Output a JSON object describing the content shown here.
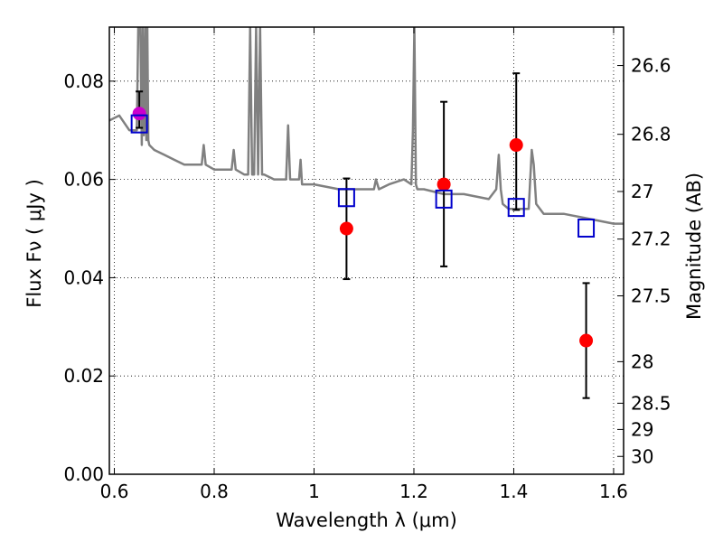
{
  "chart_data": {
    "type": "scatter",
    "title": "",
    "xlabel": "Wavelength  λ (μm)",
    "ylabel": "Flux  Fν ( μJy )",
    "ylabel_right": "Magnitude (AB)",
    "xlim": [
      0.59,
      1.62
    ],
    "ylim": [
      0.0,
      0.091
    ],
    "grid": true,
    "x_ticks": [
      0.6,
      0.8,
      1.0,
      1.2,
      1.4,
      1.6
    ],
    "x_tick_labels": [
      "0.6",
      "0.8",
      "1",
      "1.2",
      "1.4",
      "1.6"
    ],
    "y_ticks": [
      0.0,
      0.02,
      0.04,
      0.06,
      0.08
    ],
    "y_tick_labels": [
      "0.00",
      "0.02",
      "0.04",
      "0.06",
      "0.08"
    ],
    "mag_ticks": [
      26.6,
      26.8,
      27,
      27.2,
      27.5,
      28,
      28.5,
      29,
      30
    ],
    "mag_tick_labels": [
      "26.6",
      "26.8",
      "27",
      "27.2",
      "27.5",
      "28",
      "28.5",
      "29",
      "30"
    ],
    "series": [
      {
        "kind": "spectrum-line",
        "color": "#808080",
        "x": [
          0.59,
          0.61,
          0.63,
          0.645,
          0.648,
          0.652,
          0.655,
          0.657,
          0.659,
          0.662,
          0.664,
          0.666,
          0.668,
          0.67,
          0.68,
          0.7,
          0.72,
          0.74,
          0.76,
          0.775,
          0.779,
          0.783,
          0.8,
          0.82,
          0.835,
          0.839,
          0.843,
          0.86,
          0.868,
          0.872,
          0.876,
          0.88,
          0.884,
          0.888,
          0.892,
          0.896,
          0.9,
          0.92,
          0.944,
          0.948,
          0.952,
          0.97,
          0.973,
          0.976,
          1.0,
          1.05,
          1.1,
          1.12,
          1.124,
          1.13,
          1.15,
          1.18,
          1.195,
          1.198,
          1.201,
          1.204,
          1.207,
          1.22,
          1.26,
          1.3,
          1.35,
          1.365,
          1.37,
          1.374,
          1.378,
          1.39,
          1.43,
          1.436,
          1.44,
          1.445,
          1.46,
          1.5,
          1.55,
          1.6,
          1.62
        ],
        "y": [
          0.072,
          0.073,
          0.07,
          0.07,
          0.091,
          0.091,
          0.067,
          0.091,
          0.069,
          0.091,
          0.068,
          0.091,
          0.068,
          0.067,
          0.066,
          0.065,
          0.064,
          0.063,
          0.063,
          0.063,
          0.067,
          0.063,
          0.062,
          0.062,
          0.062,
          0.066,
          0.062,
          0.061,
          0.061,
          0.091,
          0.061,
          0.061,
          0.091,
          0.061,
          0.091,
          0.061,
          0.061,
          0.06,
          0.06,
          0.071,
          0.06,
          0.06,
          0.064,
          0.059,
          0.059,
          0.058,
          0.058,
          0.058,
          0.06,
          0.058,
          0.059,
          0.06,
          0.059,
          0.07,
          0.091,
          0.059,
          0.058,
          0.058,
          0.057,
          0.057,
          0.056,
          0.058,
          0.065,
          0.058,
          0.055,
          0.054,
          0.054,
          0.066,
          0.063,
          0.055,
          0.053,
          0.053,
          0.052,
          0.051,
          0.051
        ]
      },
      {
        "kind": "model-boxes",
        "marker": "open-square",
        "color": "#0000cc",
        "x": [
          0.65,
          1.065,
          1.26,
          1.405,
          1.545
        ],
        "y": [
          0.0713,
          0.0563,
          0.056,
          0.0543,
          0.0501
        ]
      },
      {
        "kind": "observed-points",
        "marker": "filled-circle",
        "color": "#ff0000",
        "x": [
          0.65,
          1.065,
          1.26,
          1.405,
          1.545
        ],
        "y": [
          0.0734,
          0.05,
          0.059,
          0.067,
          0.0272
        ],
        "err_low": [
          0.0705,
          0.0397,
          0.0423,
          0.0538,
          0.0155
        ],
        "err_high": [
          0.0779,
          0.0602,
          0.0758,
          0.0816,
          0.0389
        ],
        "first_point_color": "#cc00cc"
      }
    ]
  }
}
